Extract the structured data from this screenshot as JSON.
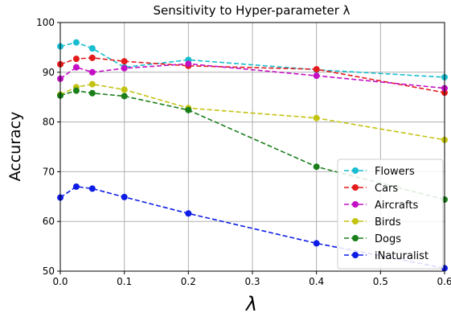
{
  "chart_data": {
    "type": "line",
    "title": "Sensitivity to Hyper-parameter λ",
    "xlabel": "λ",
    "ylabel": "Accuracy",
    "xlim": [
      0.0,
      0.6
    ],
    "ylim": [
      50,
      100
    ],
    "xticks": [
      "0.0",
      "0.1",
      "0.2",
      "0.3",
      "0.4",
      "0.5",
      "0.6"
    ],
    "yticks": [
      "50",
      "60",
      "70",
      "80",
      "90",
      "100"
    ],
    "grid": true,
    "legend_position": "lower-right",
    "series": [
      {
        "name": "Flowers",
        "color": "#17becf",
        "x": [
          0.0,
          0.025,
          0.05,
          0.1,
          0.2,
          0.4,
          0.6
        ],
        "y": [
          95.2,
          96.0,
          94.8,
          91.0,
          92.5,
          90.5,
          89.0
        ]
      },
      {
        "name": "Cars",
        "color": "#e41a1c",
        "x": [
          0.0,
          0.025,
          0.05,
          0.1,
          0.2,
          0.4,
          0.6
        ],
        "y": [
          91.6,
          92.7,
          92.9,
          92.2,
          91.3,
          90.6,
          85.9
        ]
      },
      {
        "name": "Aircrafts",
        "color": "#c40fc4",
        "x": [
          0.0,
          0.025,
          0.05,
          0.1,
          0.2,
          0.4,
          0.6
        ],
        "y": [
          88.7,
          91.0,
          90.0,
          90.8,
          91.7,
          89.3,
          86.8
        ]
      },
      {
        "name": "Birds",
        "color": "#c3c312",
        "x": [
          0.0,
          0.025,
          0.05,
          0.1,
          0.2,
          0.4,
          0.6
        ],
        "y": [
          85.5,
          87.0,
          87.6,
          86.5,
          82.8,
          80.8,
          76.4
        ]
      },
      {
        "name": "Dogs",
        "color": "#1a7f1a",
        "x": [
          0.0,
          0.025,
          0.05,
          0.1,
          0.2,
          0.4,
          0.6
        ],
        "y": [
          85.3,
          86.3,
          85.8,
          85.2,
          82.4,
          71.0,
          64.4
        ]
      },
      {
        "name": "iNaturalist",
        "color": "#0d1de6",
        "x": [
          0.0,
          0.025,
          0.05,
          0.1,
          0.2,
          0.4,
          0.6
        ],
        "y": [
          64.8,
          67.0,
          66.6,
          64.9,
          61.6,
          55.6,
          50.6
        ]
      }
    ]
  }
}
